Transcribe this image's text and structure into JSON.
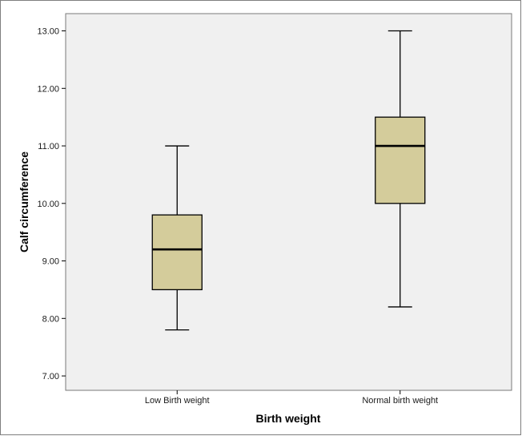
{
  "chart_data": {
    "type": "box",
    "xlabel": "Birth weight",
    "ylabel": "Calf circumference",
    "ylim": [
      6.75,
      13.3
    ],
    "yticks": [
      "7.00",
      "8.00",
      "9.00",
      "10.00",
      "11.00",
      "12.00",
      "13.00"
    ],
    "grid": false,
    "categories": [
      "Low Birth weight",
      "Normal birth weight"
    ],
    "boxes": [
      {
        "category": "Low Birth weight",
        "min": 7.8,
        "q1": 8.5,
        "median": 9.2,
        "q3": 9.8,
        "max": 11.0
      },
      {
        "category": "Normal birth weight",
        "min": 8.2,
        "q1": 10.0,
        "median": 11.0,
        "q3": 11.5,
        "max": 13.0
      }
    ],
    "colors": {
      "plot_background": "#f0f0f0",
      "box_fill": "#d4cc9b",
      "stroke": "#000000"
    }
  }
}
